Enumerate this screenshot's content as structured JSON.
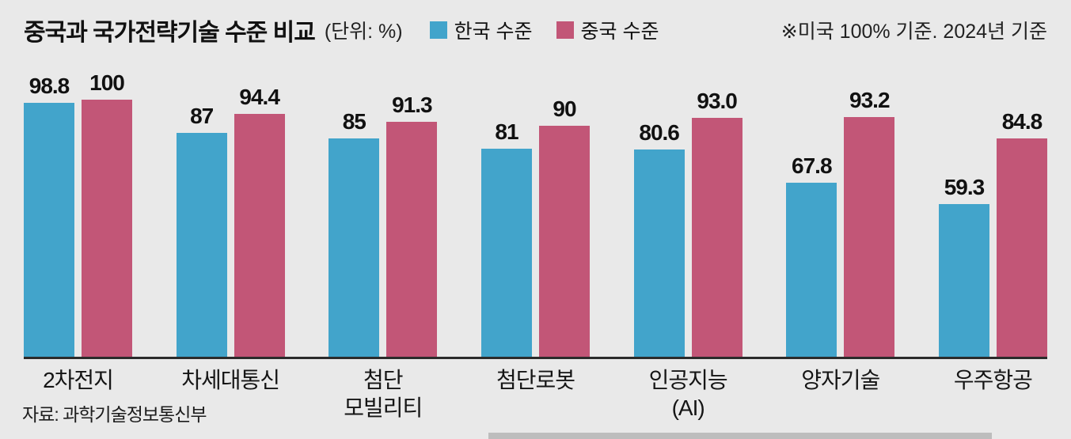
{
  "header": {
    "title": "중국과 국가전략기술 수준 비교",
    "unit": "(단위: %)",
    "note": "※미국 100% 기준. 2024년 기준"
  },
  "legend": [
    {
      "label": "한국 수준",
      "color": "#42a4cb",
      "icon": "korea-series-swatch"
    },
    {
      "label": "중국 수준",
      "color": "#c25677",
      "icon": "china-series-swatch"
    }
  ],
  "source": "자료: 과학기술정보통신부",
  "colors": {
    "korea": "#42a4cb",
    "china": "#c25677",
    "background": "#e9e9e9",
    "axis": "#2b2b2b"
  },
  "chart_data": {
    "type": "bar",
    "title": "중국과 국가전략기술 수준 비교",
    "unit": "%",
    "baseline_note": "미국 100% 기준, 2024년 기준",
    "categories": [
      [
        "2차전지"
      ],
      [
        "차세대통신"
      ],
      [
        "첨단",
        "모빌리티"
      ],
      [
        "첨단로봇"
      ],
      [
        "인공지능",
        "(AI)"
      ],
      [
        "양자기술"
      ],
      [
        "우주항공"
      ]
    ],
    "series": [
      {
        "name": "한국 수준",
        "color": "#42a4cb",
        "values": [
          98.8,
          87,
          85,
          81,
          80.6,
          67.8,
          59.3
        ],
        "labels": [
          "98.8",
          "87",
          "85",
          "81",
          "80.6",
          "67.8",
          "59.3"
        ]
      },
      {
        "name": "중국 수준",
        "color": "#c25677",
        "values": [
          100,
          94.4,
          91.3,
          90,
          93.0,
          93.2,
          84.8
        ],
        "labels": [
          "100",
          "94.4",
          "91.3",
          "90",
          "93.0",
          "93.2",
          "84.8"
        ]
      }
    ],
    "ylim": [
      0,
      100
    ],
    "grid": false,
    "legend_position": "top",
    "value_labels": true
  }
}
